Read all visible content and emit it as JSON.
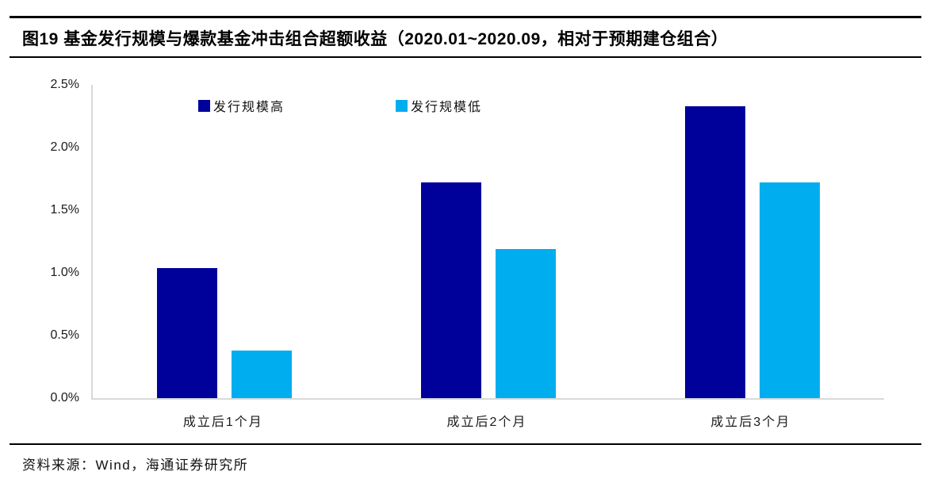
{
  "header": {
    "title": "图19 基金发行规模与爆款基金冲击组合超额收益（2020.01~2020.09，相对于预期建仓组合）"
  },
  "footer": {
    "source": "资料来源：Wind，海通证券研究所"
  },
  "colors": {
    "series_high": "#00009A",
    "series_low": "#00AEEF",
    "axis_line": "#D9D9D9",
    "rule_line": "#000000",
    "text": "#1a1a1a"
  },
  "chart_data": {
    "type": "bar",
    "title": "",
    "xlabel": "",
    "ylabel": "",
    "categories": [
      "成立后1个月",
      "成立后2个月",
      "成立后3个月"
    ],
    "series": [
      {
        "name": "发行规模高",
        "color": "#00009A",
        "values": [
          1.04,
          1.72,
          2.33
        ]
      },
      {
        "name": "发行规模低",
        "color": "#00AEEF",
        "values": [
          0.38,
          1.19,
          1.72
        ]
      }
    ],
    "unit": "%",
    "ylim": [
      0,
      2.5
    ],
    "ytick_values": [
      0,
      0.5,
      1.0,
      1.5,
      2.0,
      2.5
    ],
    "yticks": [
      "0.0%",
      "0.5%",
      "1.0%",
      "1.5%",
      "2.0%",
      "2.5%"
    ],
    "grid": false,
    "legend_position": "top-inside"
  }
}
